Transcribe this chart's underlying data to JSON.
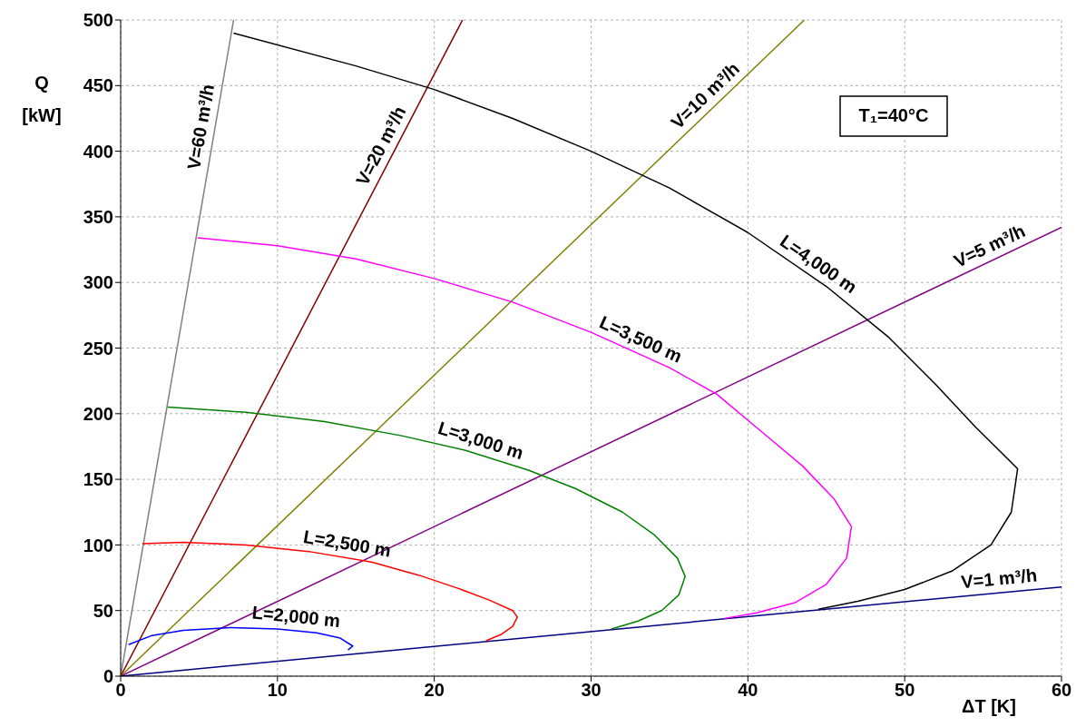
{
  "chart_data": {
    "type": "line",
    "xlabel": "ΔT [K]",
    "ylabel": "Q [kW]",
    "xlim": [
      0,
      60
    ],
    "xticks": [
      0,
      10,
      20,
      30,
      40,
      50,
      60
    ],
    "ylim": [
      0,
      500
    ],
    "yticks": [
      0,
      50,
      100,
      150,
      200,
      250,
      300,
      350,
      400,
      450,
      500
    ],
    "grid": true,
    "marker": "none",
    "line_style": "solid",
    "annotations": [
      "T₁=40°C"
    ],
    "series": [
      {
        "name": "V=60 m³/h",
        "color": "#808080",
        "x": [
          0,
          7.2
        ],
        "values": [
          0,
          500
        ]
      },
      {
        "name": "V=20 m³/h",
        "color": "#800000",
        "x": [
          0,
          21.8
        ],
        "values": [
          0,
          500
        ]
      },
      {
        "name": "V=10 m³/h",
        "color": "#808000",
        "x": [
          0,
          43.6
        ],
        "values": [
          0,
          500
        ]
      },
      {
        "name": "V=5 m³/h",
        "color": "#800080",
        "x": [
          0,
          60
        ],
        "values": [
          0,
          342
        ]
      },
      {
        "name": "V=1 m³/h",
        "color": "#000080",
        "x": [
          0,
          60
        ],
        "values": [
          0,
          68
        ]
      },
      {
        "name": "L=4,000 m",
        "color": "#000000",
        "x": [
          7.2,
          15,
          20,
          25,
          30,
          35,
          40,
          45,
          49,
          52,
          54.5,
          56.2,
          57.2,
          56.8,
          55.5,
          53,
          50,
          47,
          44.5
        ],
        "values": [
          490,
          465,
          447,
          425,
          400,
          372,
          338,
          297,
          258,
          222,
          190,
          170,
          158,
          125,
          100,
          80,
          66,
          57,
          51
        ]
      },
      {
        "name": "L=3,500 m",
        "color": "#ff00ff",
        "x": [
          4.9,
          10,
          15,
          20,
          25,
          30,
          35,
          38,
          41,
          43.5,
          45.5,
          46.6,
          46.3,
          45,
          43,
          40.5,
          38.5
        ],
        "values": [
          334,
          328,
          318,
          303,
          285,
          262,
          235,
          215,
          185,
          160,
          135,
          114,
          90,
          70,
          56,
          48,
          44
        ]
      },
      {
        "name": "L=3,000 m",
        "color": "#008000",
        "x": [
          3,
          8,
          13,
          18,
          22,
          26,
          29,
          32,
          34,
          35.5,
          36,
          35.6,
          34.5,
          33,
          31.3
        ],
        "values": [
          205,
          201,
          194,
          183,
          172,
          157,
          143,
          125,
          108,
          90,
          76,
          62,
          50,
          42,
          36
        ]
      },
      {
        "name": "L=2,500 m",
        "color": "#ff0000",
        "x": [
          1.4,
          4,
          8,
          12,
          16,
          19,
          21.5,
          23.5,
          25,
          25.3,
          25,
          24.3,
          23.3
        ],
        "values": [
          101,
          102,
          100,
          95,
          87,
          77,
          67,
          58,
          50,
          45,
          38,
          32,
          27
        ]
      },
      {
        "name": "L=2,000 m",
        "color": "#0000ff",
        "x": [
          0.5,
          2,
          4,
          7,
          10,
          12.5,
          14,
          14.8,
          14.5
        ],
        "values": [
          24,
          31,
          35,
          37,
          36,
          33,
          29,
          23,
          20
        ]
      }
    ]
  }
}
